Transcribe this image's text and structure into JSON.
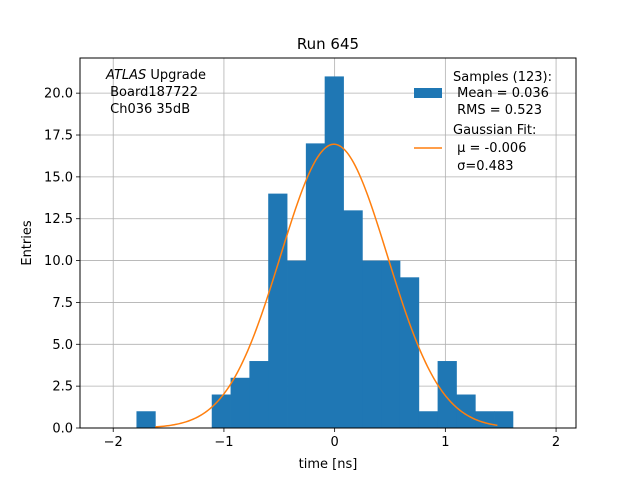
{
  "chart_data": {
    "type": "bar",
    "title": "Run 645",
    "xlabel": "time [ns]",
    "ylabel": "Entries",
    "xlim": [
      -2.3,
      2.18
    ],
    "ylim": [
      0,
      22.1
    ],
    "xticks": [
      -2,
      -1,
      0,
      1,
      2
    ],
    "xtick_labels": [
      "−2",
      "−1",
      "0",
      "1",
      "2"
    ],
    "yticks": [
      0,
      2.5,
      5,
      7.5,
      10,
      12.5,
      15,
      17.5,
      20
    ],
    "ytick_labels": [
      "0.0",
      "2.5",
      "5.0",
      "7.5",
      "10.0",
      "12.5",
      "15.0",
      "17.5",
      "20.0"
    ],
    "grid": true,
    "bin_width": 0.17,
    "histogram": {
      "name": "Samples (123):",
      "color": "#1f77b4",
      "bin_edges": [
        -1.79,
        -1.62,
        -1.45,
        -1.28,
        -1.11,
        -0.94,
        -0.77,
        -0.6,
        -0.43,
        -0.26,
        -0.09,
        0.08,
        0.25,
        0.42,
        0.59,
        0.76,
        0.93,
        1.1,
        1.27,
        1.44,
        1.61
      ],
      "counts": [
        1,
        0,
        0,
        0,
        2,
        3,
        4,
        14,
        10,
        17,
        21,
        13,
        10,
        10,
        9,
        1,
        4,
        2,
        1,
        1
      ]
    },
    "fit": {
      "name": "Gaussian Fit:",
      "color": "#ff7f0e",
      "mu": -0.006,
      "sigma": 0.483,
      "amplitude": 16.95,
      "x_range": [
        -1.62,
        1.47
      ]
    },
    "legend": {
      "placement": "top-right",
      "samples_lines": [
        "Samples (123):",
        " Mean = 0.036",
        " RMS = 0.523"
      ],
      "fit_lines": [
        "Gaussian Fit:",
        " μ = -0.006",
        " σ=0.483"
      ]
    },
    "annotation": {
      "line1_italic": "ATLAS",
      "line1_rest": " Upgrade",
      "line2": " Board187722",
      "line3": " Ch036 35dB"
    }
  }
}
